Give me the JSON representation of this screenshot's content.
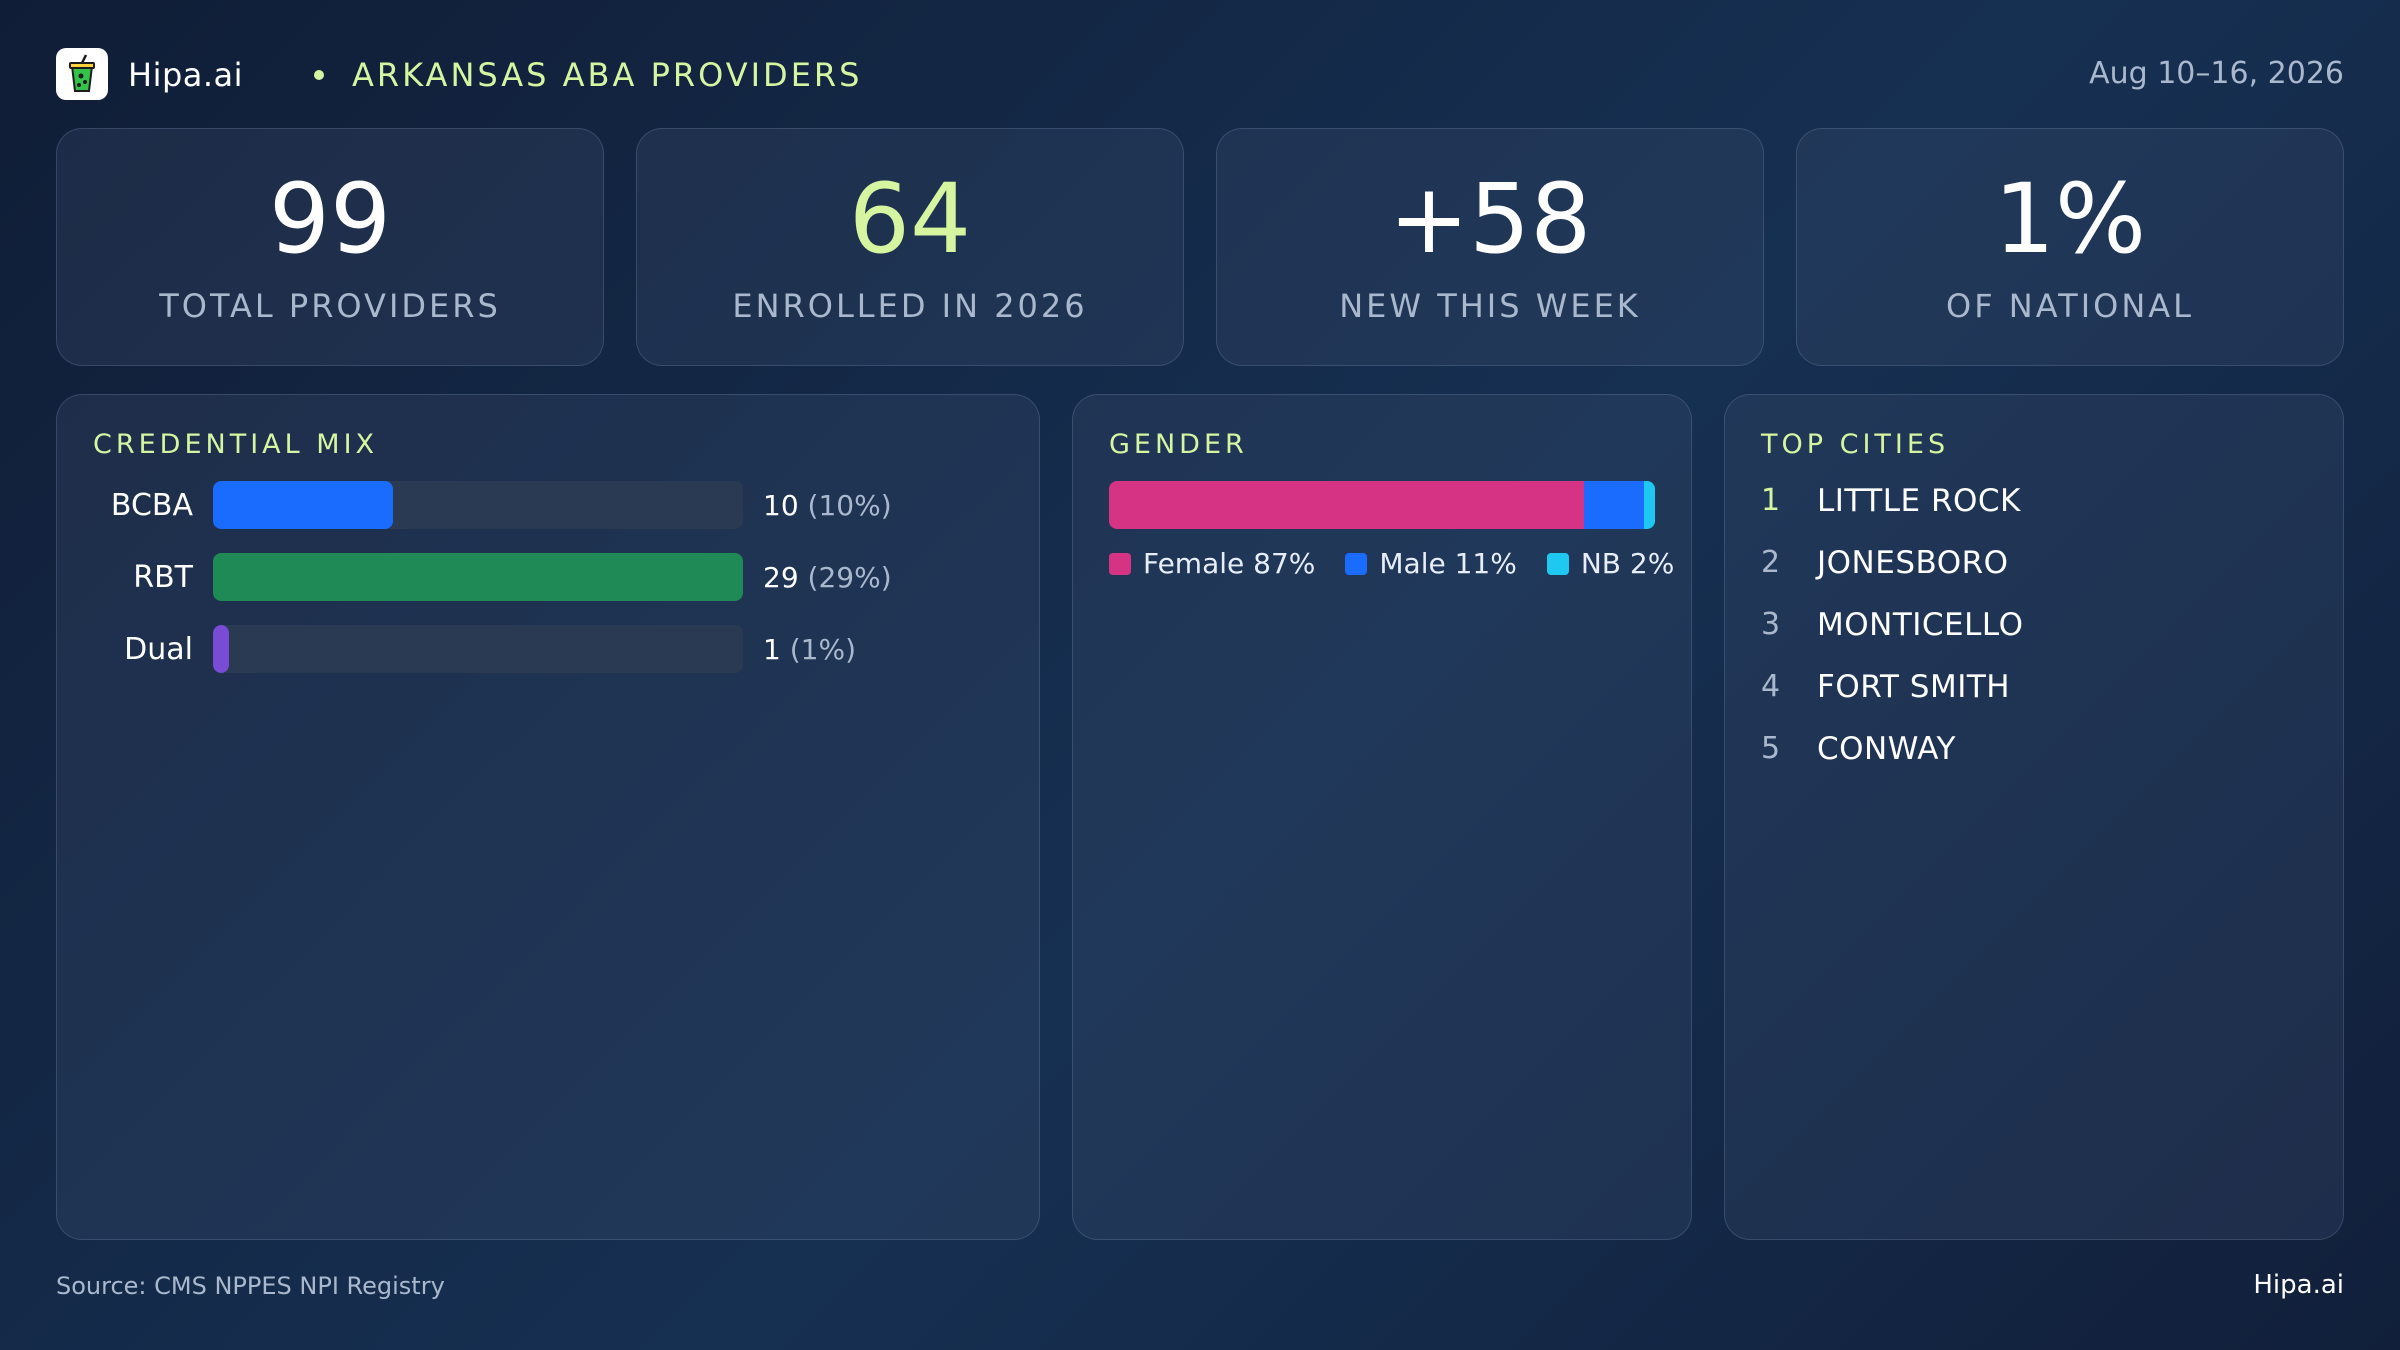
{
  "header": {
    "brand": "Hipa.ai",
    "logo_icon": "cup-icon",
    "region_title": "ARKANSAS ABA PROVIDERS",
    "date_range": "Aug 10–16, 2026"
  },
  "stats": [
    {
      "value": "99",
      "label": "TOTAL PROVIDERS",
      "accent": false
    },
    {
      "value": "64",
      "label": "ENROLLED IN 2026",
      "accent": true
    },
    {
      "value": "+58",
      "label": "NEW THIS WEEK",
      "accent": false
    },
    {
      "value": "1%",
      "label": "OF NATIONAL",
      "accent": false
    }
  ],
  "credential_mix": {
    "title": "CREDENTIAL MIX",
    "rows": [
      {
        "label": "BCBA",
        "count": "10",
        "pct_text": "(10%)",
        "fraction": 0.34,
        "color": "#1a6cff"
      },
      {
        "label": "RBT",
        "count": "29",
        "pct_text": "(29%)",
        "fraction": 1.0,
        "color": "#1f8a55"
      },
      {
        "label": "Dual",
        "count": "1",
        "pct_text": "(1%)",
        "fraction": 0.03,
        "color": "#7a4cd6"
      }
    ]
  },
  "gender": {
    "title": "GENDER",
    "segments": [
      {
        "name": "Female",
        "pct": 87,
        "label": "Female 87%",
        "color": "#d63384"
      },
      {
        "name": "Male",
        "pct": 11,
        "label": "Male 11%",
        "color": "#1a6cff"
      },
      {
        "name": "NB",
        "pct": 2,
        "label": "NB 2%",
        "color": "#1ec8f0"
      }
    ]
  },
  "top_cities": {
    "title": "TOP CITIES",
    "items": [
      {
        "rank": "1",
        "name": "LITTLE ROCK"
      },
      {
        "rank": "2",
        "name": "JONESBORO"
      },
      {
        "rank": "3",
        "name": "MONTICELLO"
      },
      {
        "rank": "4",
        "name": "FORT SMITH"
      },
      {
        "rank": "5",
        "name": "CONWAY"
      }
    ]
  },
  "footer": {
    "source": "Source: CMS NPPES NPI Registry",
    "brand": "Hipa.ai"
  }
}
